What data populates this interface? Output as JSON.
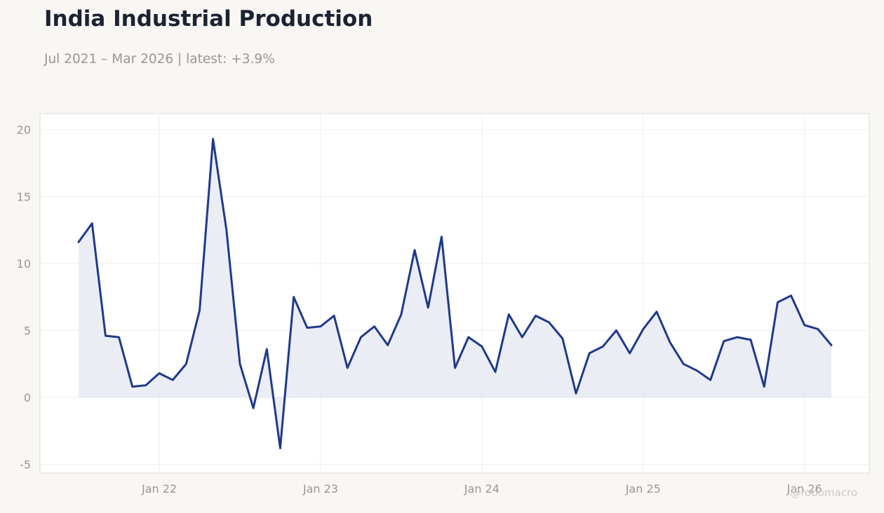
{
  "title": "India Industrial Production",
  "subtitle": "Jul 2021 – Mar 2026 | latest: +3.9%",
  "watermark": "@robomacro",
  "colors": {
    "line": "#1f3a8a",
    "fill": "#e9ebf4",
    "grid": "#eeeeee",
    "tick_text": "#9a968f",
    "background": "#f9f7f4",
    "plot_background": "#ffffff"
  },
  "chart_data": {
    "type": "area",
    "title": "India Industrial Production",
    "xlabel": "",
    "ylabel": "",
    "ylim": [
      -5.6,
      21.2
    ],
    "yticks": [
      -5,
      0,
      5,
      10,
      15,
      20
    ],
    "ytick_labels": [
      "-5",
      "0",
      "5",
      "10",
      "15",
      "20"
    ],
    "xticks": [
      "2022-01",
      "2023-01",
      "2024-01",
      "2025-01",
      "2026-01"
    ],
    "xtick_labels": [
      "Jan 22",
      "Jan 23",
      "Jan 24",
      "Jan 25",
      "Jan 26"
    ],
    "grid": true,
    "series": [
      {
        "x": [
          "2021-07",
          "2021-08",
          "2021-09",
          "2021-10",
          "2021-11",
          "2021-12",
          "2022-01",
          "2022-02",
          "2022-03",
          "2022-04",
          "2022-05",
          "2022-06",
          "2022-07",
          "2022-08",
          "2022-09",
          "2022-10",
          "2022-11",
          "2022-12",
          "2023-01",
          "2023-02",
          "2023-03",
          "2023-04",
          "2023-05",
          "2023-06",
          "2023-07",
          "2023-08",
          "2023-09",
          "2023-10",
          "2023-11",
          "2023-12",
          "2024-01",
          "2024-02",
          "2024-03",
          "2024-04",
          "2024-05",
          "2024-06",
          "2024-07",
          "2024-08",
          "2024-09",
          "2024-10",
          "2024-11",
          "2024-12",
          "2025-01",
          "2025-02",
          "2025-03",
          "2025-04",
          "2025-05",
          "2025-06",
          "2025-07",
          "2025-08",
          "2025-09",
          "2025-10",
          "2025-11",
          "2025-12",
          "2026-01",
          "2026-02",
          "2026-03"
        ],
        "values": [
          11.6,
          13.0,
          4.6,
          4.5,
          0.8,
          0.9,
          1.8,
          1.3,
          2.5,
          6.5,
          19.3,
          12.5,
          2.5,
          -0.8,
          3.6,
          -3.8,
          7.5,
          5.2,
          5.3,
          6.1,
          2.2,
          4.5,
          5.3,
          3.9,
          6.2,
          11.0,
          6.7,
          12.0,
          2.2,
          4.5,
          3.8,
          1.9,
          6.2,
          4.5,
          6.1,
          5.6,
          4.4,
          0.3,
          3.3,
          3.8,
          5.0,
          3.3,
          5.1,
          6.4,
          4.1,
          2.5,
          2.0,
          1.3,
          4.2,
          4.5,
          4.3,
          0.8,
          7.1,
          7.6,
          5.4,
          5.1,
          3.9
        ]
      }
    ]
  }
}
